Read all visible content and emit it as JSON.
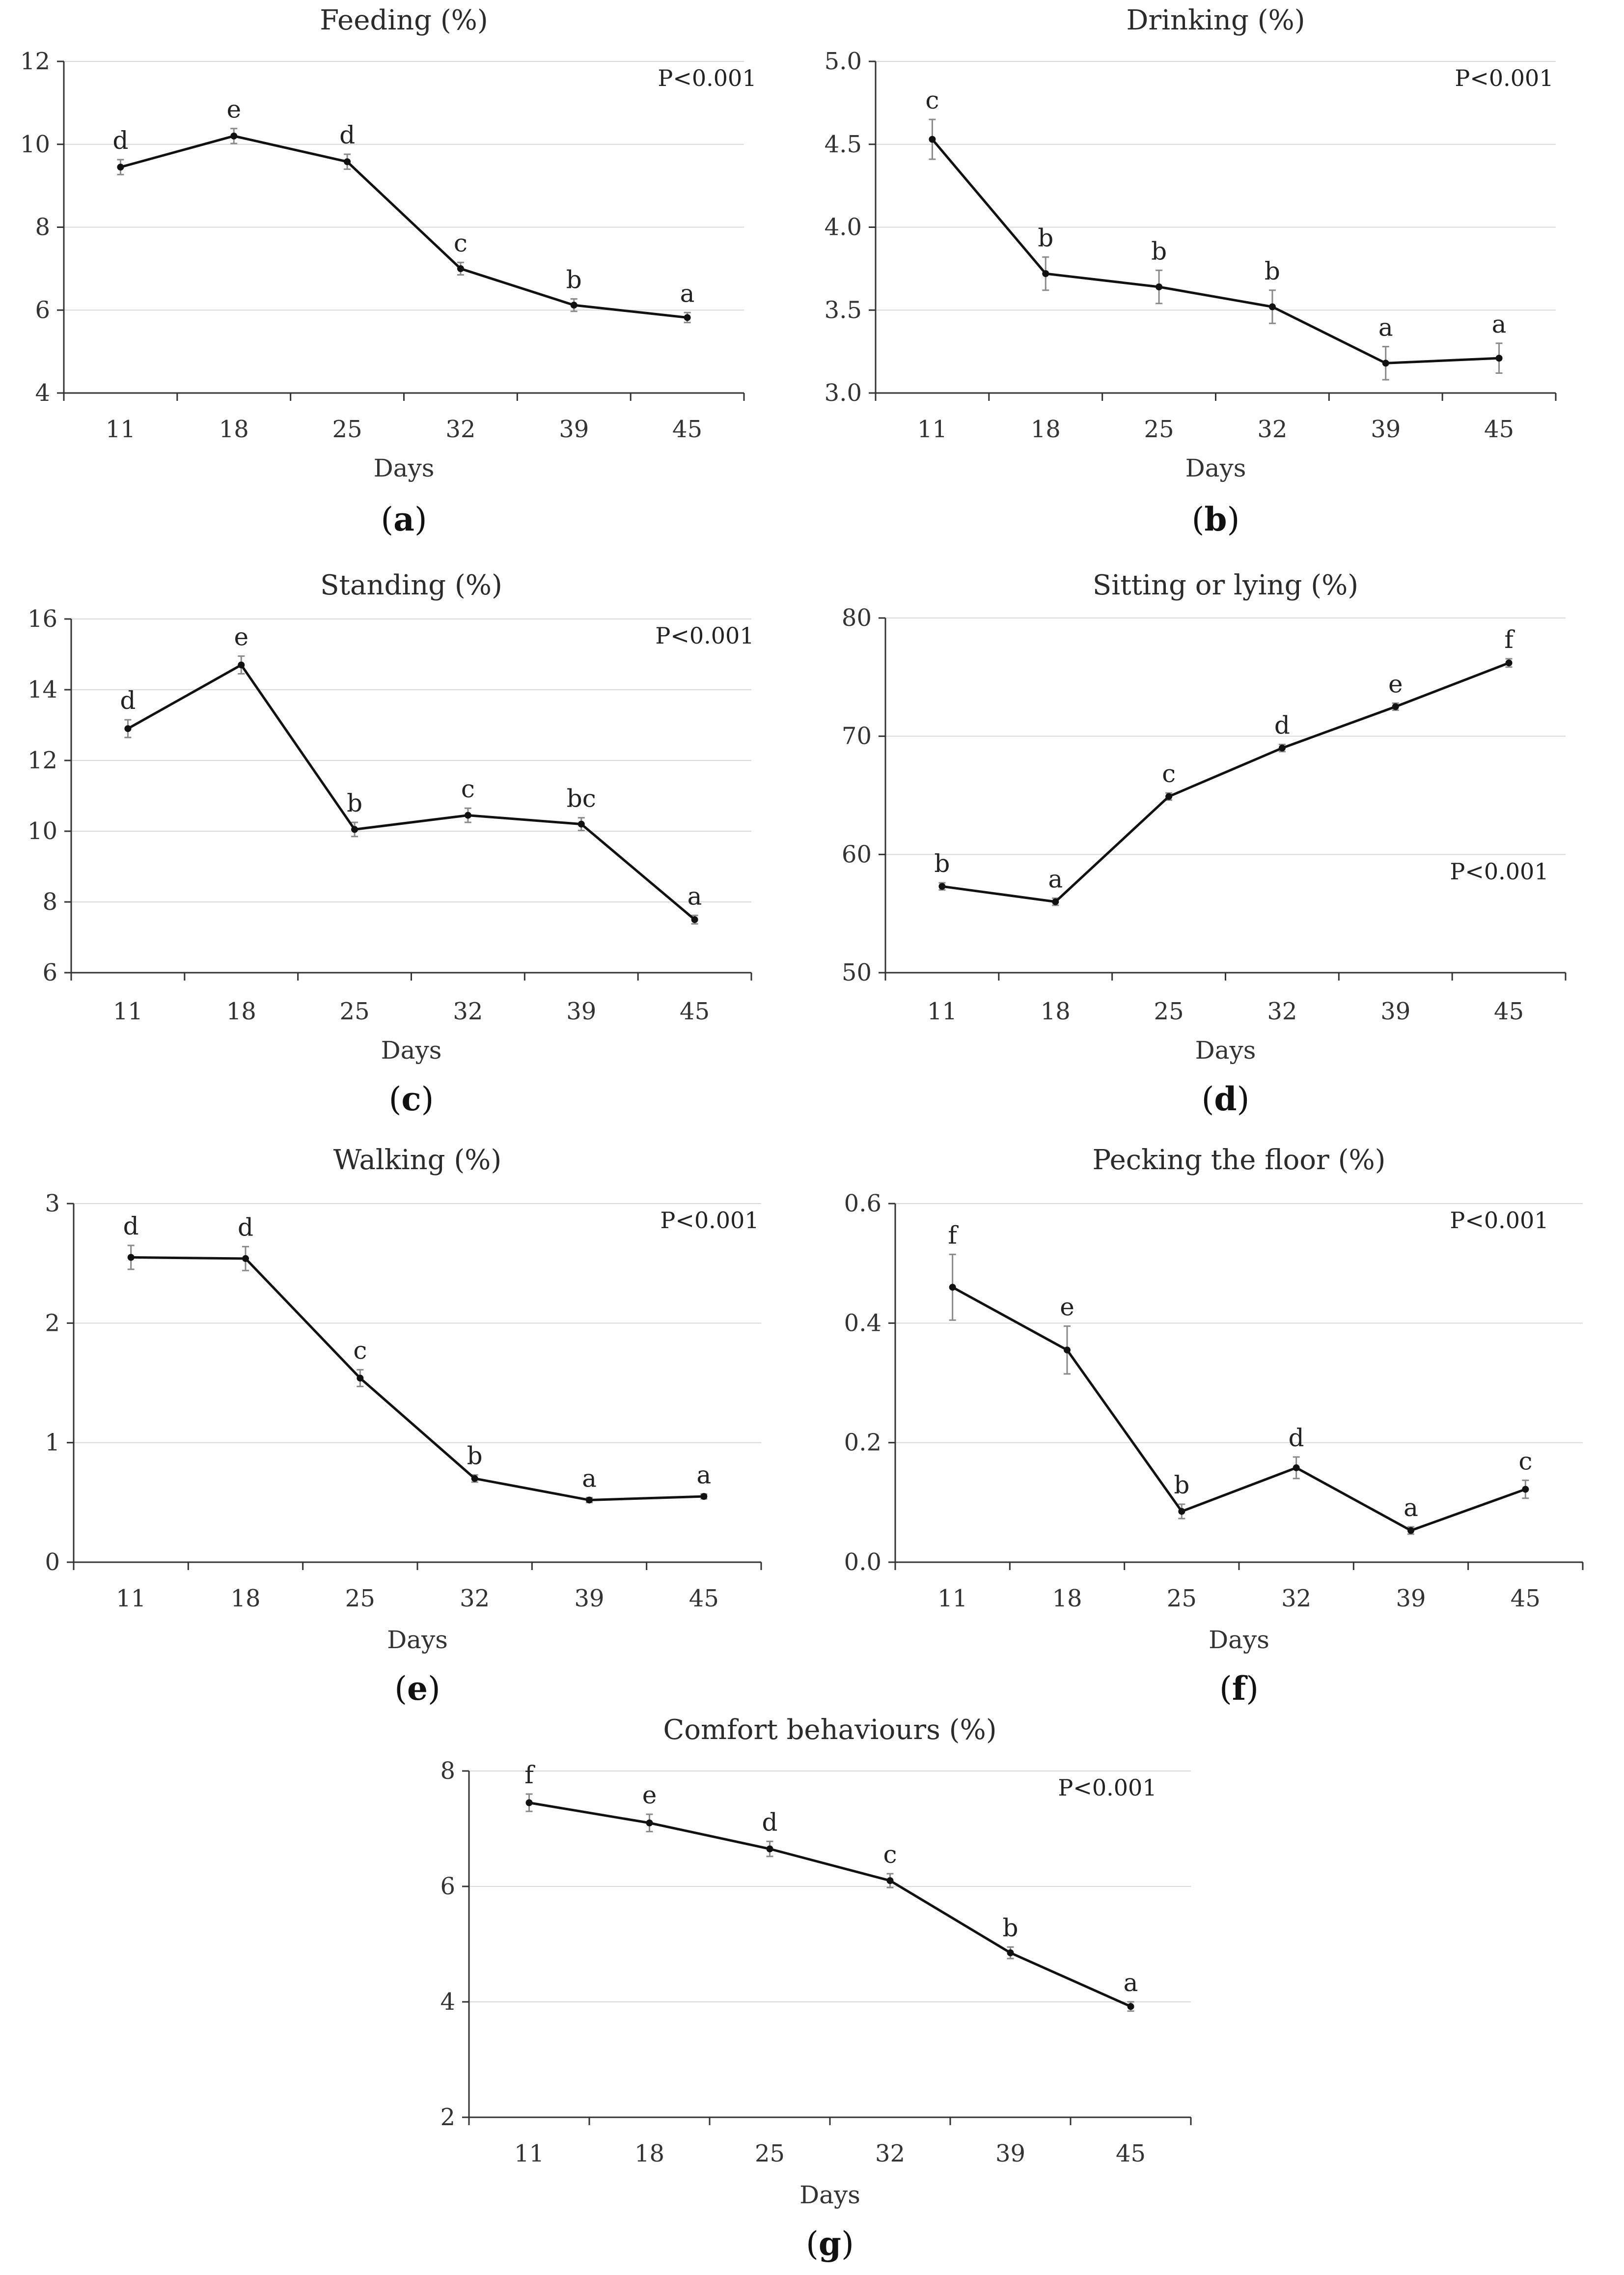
{
  "chart_data": [
    {
      "id": "a",
      "type": "line",
      "title": "Feeding (%)",
      "xlabel": "Days",
      "caption_letter": "a",
      "p_value": "P<0.001",
      "p_position": "top-right",
      "categories": [
        "11",
        "18",
        "25",
        "32",
        "39",
        "45"
      ],
      "values": [
        9.45,
        10.2,
        9.58,
        7.0,
        6.12,
        5.82
      ],
      "errors": [
        0.18,
        0.18,
        0.18,
        0.15,
        0.15,
        0.12
      ],
      "letters": [
        "d",
        "e",
        "d",
        "c",
        "b",
        "a"
      ],
      "ylim": [
        4,
        12
      ],
      "yticks": [
        4,
        6,
        8,
        10,
        12
      ],
      "ytick_labels": [
        "4",
        "6",
        "8",
        "10",
        "12"
      ],
      "grid": true
    },
    {
      "id": "b",
      "type": "line",
      "title": "Drinking (%)",
      "xlabel": "Days",
      "caption_letter": "b",
      "p_value": "P<0.001",
      "p_position": "top-right",
      "categories": [
        "11",
        "18",
        "25",
        "32",
        "39",
        "45"
      ],
      "values": [
        4.53,
        3.72,
        3.64,
        3.52,
        3.18,
        3.21
      ],
      "errors": [
        0.12,
        0.1,
        0.1,
        0.1,
        0.1,
        0.09
      ],
      "letters": [
        "c",
        "b",
        "b",
        "b",
        "a",
        "a"
      ],
      "ylim": [
        3.0,
        5.0
      ],
      "yticks": [
        3.0,
        3.5,
        4.0,
        4.5,
        5.0
      ],
      "ytick_labels": [
        "3.0",
        "3.5",
        "4.0",
        "4.5",
        "5.0"
      ],
      "grid": true
    },
    {
      "id": "c",
      "type": "line",
      "title": "Standing (%)",
      "xlabel": "Days",
      "caption_letter": "c",
      "p_value": "P<0.001",
      "p_position": "top-right",
      "categories": [
        "11",
        "18",
        "25",
        "32",
        "39",
        "45"
      ],
      "values": [
        12.9,
        14.7,
        10.05,
        10.45,
        10.2,
        7.5
      ],
      "errors": [
        0.25,
        0.25,
        0.2,
        0.2,
        0.18,
        0.12
      ],
      "letters": [
        "d",
        "e",
        "b",
        "c",
        "bc",
        "a"
      ],
      "ylim": [
        6,
        16
      ],
      "yticks": [
        6,
        8,
        10,
        12,
        14,
        16
      ],
      "ytick_labels": [
        "6",
        "8",
        "10",
        "12",
        "14",
        "16"
      ],
      "grid": true
    },
    {
      "id": "d",
      "type": "line",
      "title": "Sitting or lying (%)",
      "xlabel": "Days",
      "caption_letter": "d",
      "p_value": "P<0.001",
      "p_position": "bottom-right",
      "categories": [
        "11",
        "18",
        "25",
        "32",
        "39",
        "45"
      ],
      "values": [
        57.3,
        56.0,
        64.9,
        69.0,
        72.5,
        76.2
      ],
      "errors": [
        0.3,
        0.3,
        0.3,
        0.3,
        0.3,
        0.35
      ],
      "letters": [
        "b",
        "a",
        "c",
        "d",
        "e",
        "f"
      ],
      "ylim": [
        50,
        80
      ],
      "yticks": [
        50,
        60,
        70,
        80
      ],
      "ytick_labels": [
        "50",
        "60",
        "70",
        "80"
      ],
      "grid": true
    },
    {
      "id": "e",
      "type": "line",
      "title": "Walking (%)",
      "xlabel": "Days",
      "caption_letter": "e",
      "p_value": "P<0.001",
      "p_position": "top-right",
      "categories": [
        "11",
        "18",
        "25",
        "32",
        "39",
        "45"
      ],
      "values": [
        2.55,
        2.54,
        1.54,
        0.7,
        0.52,
        0.55
      ],
      "errors": [
        0.1,
        0.1,
        0.07,
        0.03,
        0.02,
        0.02
      ],
      "letters": [
        "d",
        "d",
        "c",
        "b",
        "a",
        "a"
      ],
      "ylim": [
        0,
        3
      ],
      "yticks": [
        0,
        1,
        2,
        3
      ],
      "ytick_labels": [
        "0",
        "1",
        "2",
        "3"
      ],
      "grid": true
    },
    {
      "id": "f",
      "type": "line",
      "title": "Pecking the floor (%)",
      "xlabel": "Days",
      "caption_letter": "f",
      "p_value": "P<0.001",
      "p_position": "top-right",
      "categories": [
        "11",
        "18",
        "25",
        "32",
        "39",
        "45"
      ],
      "values": [
        0.46,
        0.355,
        0.085,
        0.158,
        0.053,
        0.122
      ],
      "errors": [
        0.055,
        0.04,
        0.012,
        0.018,
        0.006,
        0.015
      ],
      "letters": [
        "f",
        "e",
        "b",
        "d",
        "a",
        "c"
      ],
      "ylim": [
        0.0,
        0.6
      ],
      "yticks": [
        0.0,
        0.2,
        0.4,
        0.6
      ],
      "ytick_labels": [
        "0.0",
        "0.2",
        "0.4",
        "0.6"
      ],
      "grid": true
    },
    {
      "id": "g",
      "type": "line",
      "title": "Comfort behaviours (%)",
      "xlabel": "Days",
      "caption_letter": "g",
      "p_value": "P<0.001",
      "p_position": "top-right",
      "categories": [
        "11",
        "18",
        "25",
        "32",
        "39",
        "45"
      ],
      "values": [
        7.45,
        7.1,
        6.65,
        6.1,
        4.85,
        3.92
      ],
      "errors": [
        0.15,
        0.15,
        0.13,
        0.12,
        0.1,
        0.08
      ],
      "letters": [
        "f",
        "e",
        "d",
        "c",
        "b",
        "a"
      ],
      "ylim": [
        2,
        8
      ],
      "yticks": [
        2,
        4,
        6,
        8
      ],
      "ytick_labels": [
        "2",
        "4",
        "6",
        "8"
      ],
      "grid": true
    }
  ]
}
